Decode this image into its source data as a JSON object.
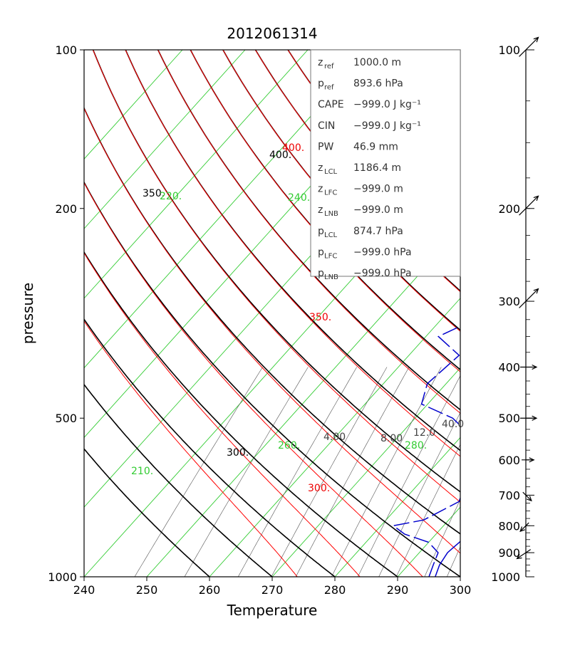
{
  "chart_data": {
    "type": "skew-t",
    "title": "2012061314",
    "xlabel": "Temperature",
    "ylabel": "pressure",
    "xlim": [
      240,
      300
    ],
    "ylim": [
      1000,
      100
    ],
    "y_log": true,
    "x_ticks": [
      "240",
      "250",
      "260",
      "270",
      "280",
      "290",
      "300"
    ],
    "y_ticks": [
      "100",
      "200",
      "500",
      "1000"
    ],
    "colors": {
      "temperature": "#0000cc",
      "dewpoint": "#0000cc",
      "dry_adiabat": "#000000",
      "moist_adiabat": "#ff0000",
      "isotherm": "#33cc33",
      "mixing_ratio": "#555555"
    },
    "temperature_profile": [
      {
        "p": 1000,
        "t": 296
      },
      {
        "p": 950,
        "t": 295
      },
      {
        "p": 900,
        "t": 294.5
      },
      {
        "p": 850,
        "t": 295
      },
      {
        "p": 800,
        "t": 294
      },
      {
        "p": 750,
        "t": 292
      },
      {
        "p": 700,
        "t": 290
      },
      {
        "p": 650,
        "t": 288
      },
      {
        "p": 600,
        "t": 286
      },
      {
        "p": 550,
        "t": 284.5
      },
      {
        "p": 500,
        "t": 283
      },
      {
        "p": 450,
        "t": 281
      },
      {
        "p": 400,
        "t": 278
      },
      {
        "p": 350,
        "t": 273
      },
      {
        "p": 300,
        "t": 268.5
      },
      {
        "p": 260,
        "t": 264
      },
      {
        "p": 230,
        "t": 260
      },
      {
        "p": 200,
        "t": 257
      },
      {
        "p": 180,
        "t": 252
      },
      {
        "p": 160,
        "t": 249
      },
      {
        "p": 150,
        "t": 248
      },
      {
        "p": 140,
        "t": 247
      },
      {
        "p": 130,
        "t": 245
      },
      {
        "p": 120,
        "t": 243
      },
      {
        "p": 110,
        "t": 242
      },
      {
        "p": 105,
        "t": 243
      },
      {
        "p": 100,
        "t": 242.5
      }
    ],
    "dewpoint_profile": [
      {
        "p": 1000,
        "t": 295
      },
      {
        "p": 950,
        "t": 294
      },
      {
        "p": 900,
        "t": 293
      },
      {
        "p": 860,
        "t": 290
      },
      {
        "p": 830,
        "t": 285
      },
      {
        "p": 800,
        "t": 282
      },
      {
        "p": 780,
        "t": 286
      },
      {
        "p": 720,
        "t": 289
      },
      {
        "p": 650,
        "t": 287
      },
      {
        "p": 560,
        "t": 284
      },
      {
        "p": 500,
        "t": 276
      },
      {
        "p": 470,
        "t": 269
      },
      {
        "p": 430,
        "t": 267
      },
      {
        "p": 380,
        "t": 268
      },
      {
        "p": 350,
        "t": 262
      },
      {
        "p": 320,
        "t": 266
      },
      {
        "p": 290,
        "t": 265
      },
      {
        "p": 260,
        "t": 258
      },
      {
        "p": 230,
        "t": 252
      },
      {
        "p": 200,
        "t": 249
      },
      {
        "p": 180,
        "t": 245
      },
      {
        "p": 160,
        "t": 240.5
      }
    ],
    "dry_adiabats": [
      260,
      270,
      280,
      290,
      300,
      310,
      320,
      330,
      340,
      350,
      360,
      370,
      380,
      390,
      400
    ],
    "dry_adiabat_labels": [
      "300.",
      "350.",
      "400."
    ],
    "moist_adiabats": [
      280,
      290,
      300,
      310,
      320,
      330,
      340,
      350,
      360,
      370,
      380,
      390,
      400
    ],
    "moist_adiabat_labels": [
      "300.",
      "350.",
      "400."
    ],
    "isotherms": [
      180,
      190,
      200,
      210,
      220,
      230,
      240,
      250,
      260,
      270,
      280,
      290,
      300
    ],
    "isotherm_labels": [
      "210.",
      "220.",
      "240.",
      "260.",
      "280."
    ],
    "mixing_ratios": [
      0.5,
      1,
      2,
      3,
      4,
      6,
      8,
      10,
      12,
      16,
      20
    ],
    "mixing_ratio_labels": [
      "4.00",
      "8.00",
      "12.0",
      "40.0"
    ],
    "winds": [
      {
        "p": "100",
        "dir": "SW-strong"
      },
      {
        "p": "200",
        "dir": "SW-strong"
      },
      {
        "p": "300",
        "dir": "SW-strong"
      },
      {
        "p": "400",
        "dir": "W"
      },
      {
        "p": "500",
        "dir": "W"
      },
      {
        "p": "600",
        "dir": "W-weak"
      },
      {
        "p": "700",
        "dir": "NW-weak"
      },
      {
        "p": "800",
        "dir": "NE-weak"
      },
      {
        "p": "900",
        "dir": "NE"
      }
    ],
    "wind_axis_labels": [
      "100",
      "200",
      "300",
      "400",
      "500",
      "600",
      "700",
      "800",
      "900",
      "1000"
    ]
  },
  "info_box": [
    {
      "sym": "z",
      "sub": "ref",
      "value": "1000.0 m"
    },
    {
      "sym": "p",
      "sub": "ref",
      "value": "893.6 hPa"
    },
    {
      "sym": "CAPE",
      "sub": "",
      "value": "−999.0 J kg⁻¹"
    },
    {
      "sym": "CIN",
      "sub": "",
      "value": "−999.0 J kg⁻¹"
    },
    {
      "sym": "PW",
      "sub": "",
      "value": "46.9 mm"
    },
    {
      "sym": "z",
      "sub": "LCL",
      "value": "1186.4 m"
    },
    {
      "sym": "z",
      "sub": "LFC",
      "value": "−999.0 m"
    },
    {
      "sym": "z",
      "sub": "LNB",
      "value": "−999.0 m"
    },
    {
      "sym": "p",
      "sub": "LCL",
      "value": "874.7 hPa"
    },
    {
      "sym": "p",
      "sub": "LFC",
      "value": "−999.0 hPa"
    },
    {
      "sym": "p",
      "sub": "LNB",
      "value": "−999.0 hPa"
    }
  ]
}
